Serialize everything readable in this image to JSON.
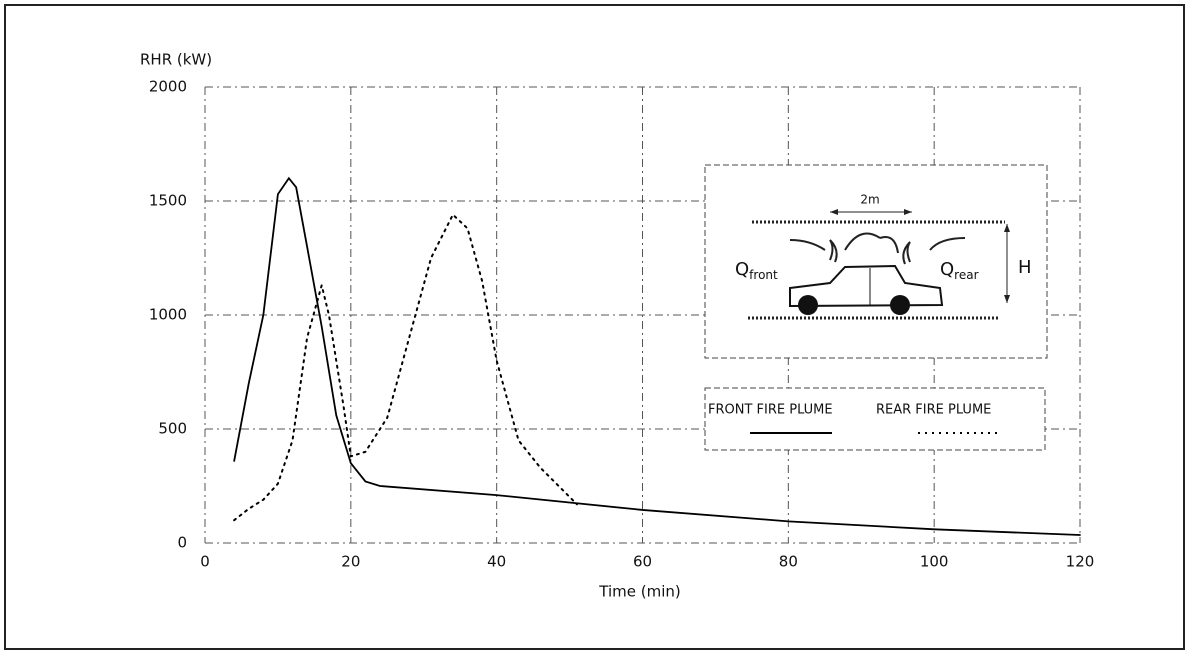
{
  "chart_data": {
    "type": "line",
    "y_label": "RHR (kW)",
    "x_label": "Time (min)",
    "xlim": [
      0,
      120
    ],
    "xticks": [
      0,
      20,
      40,
      60,
      80,
      100,
      120
    ],
    "ylim": [
      0,
      2000
    ],
    "yticks": [
      0,
      500,
      1000,
      1500,
      2000
    ],
    "grid": true,
    "legend": "right",
    "series": [
      {
        "name": "FRONT FIRE PLUME",
        "color": "#000000",
        "style": "solid",
        "x": [
          4,
          6,
          8,
          10,
          11.5,
          12.5,
          14,
          16,
          18,
          20,
          22,
          24,
          40,
          60,
          80,
          100,
          120
        ],
        "values": [
          360,
          700,
          1000,
          1530,
          1600,
          1560,
          1300,
          950,
          560,
          350,
          270,
          250,
          210,
          145,
          95,
          60,
          35
        ]
      },
      {
        "name": "REAR FIRE PLUME",
        "color": "#000000",
        "style": "dotted",
        "x": [
          4,
          6,
          8,
          10,
          12,
          14,
          16,
          17,
          18,
          19,
          20,
          22,
          25,
          28,
          31,
          34,
          36,
          38,
          40,
          43,
          46,
          51
        ],
        "values": [
          100,
          150,
          190,
          260,
          450,
          900,
          1130,
          1000,
          800,
          600,
          380,
          400,
          550,
          900,
          1250,
          1440,
          1380,
          1150,
          800,
          450,
          330,
          170
        ]
      }
    ],
    "inset": {
      "width_label": "2m",
      "front_label": {
        "main": "Q",
        "sub": "front"
      },
      "rear_label": {
        "main": "Q",
        "sub": "rear"
      },
      "height_label": "H"
    }
  }
}
